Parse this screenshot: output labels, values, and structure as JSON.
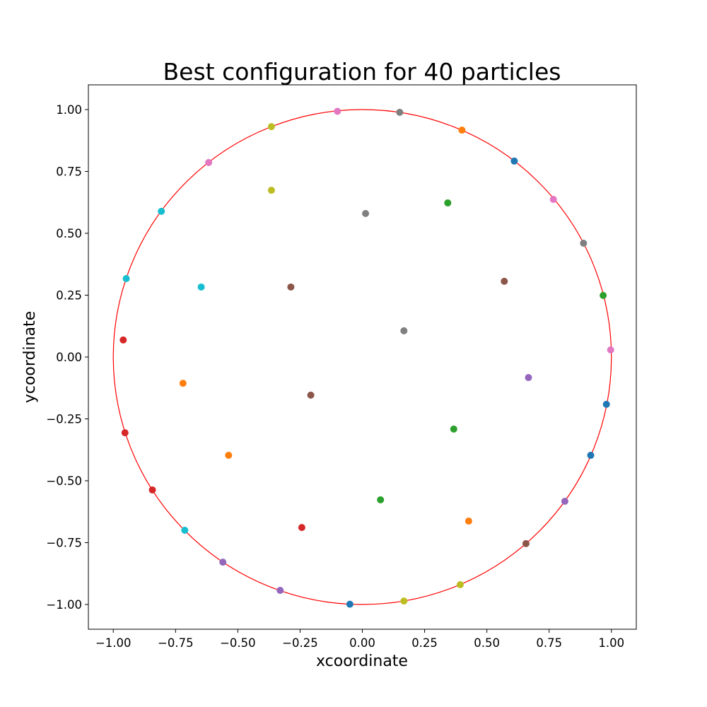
{
  "chart_data": {
    "type": "scatter",
    "title": "Best configuration for 40 particles",
    "xlabel": "xcoordinate",
    "ylabel": "ycoordinate",
    "xlim": [
      -1.1,
      1.1
    ],
    "ylim": [
      -1.1,
      1.1
    ],
    "x_ticks": [
      -1.0,
      -0.75,
      -0.5,
      -0.25,
      0.0,
      0.25,
      0.5,
      0.75,
      1.0
    ],
    "y_ticks": [
      -1.0,
      -0.75,
      -0.5,
      -0.25,
      0.0,
      0.25,
      0.5,
      0.75,
      1.0
    ],
    "x_tick_labels": [
      "−1.00",
      "−0.75",
      "−0.50",
      "−0.25",
      "0.00",
      "0.25",
      "0.50",
      "0.75",
      "1.00"
    ],
    "y_tick_labels": [
      "−1.00",
      "−0.75",
      "−0.50",
      "−0.25",
      "0.00",
      "0.25",
      "0.50",
      "0.75",
      "1.00"
    ],
    "grid": false,
    "circle": {
      "center": [
        0,
        0
      ],
      "radius": 1.0,
      "color": "#ff0000"
    },
    "points": [
      {
        "x": -0.1,
        "y": 0.993,
        "color": "#e377c2"
      },
      {
        "x": 0.15,
        "y": 0.989,
        "color": "#7f7f7f"
      },
      {
        "x": -0.365,
        "y": 0.931,
        "color": "#bcbd22"
      },
      {
        "x": 0.4,
        "y": 0.917,
        "color": "#ff7f0e"
      },
      {
        "x": 0.61,
        "y": 0.792,
        "color": "#1f77b4"
      },
      {
        "x": -0.617,
        "y": 0.786,
        "color": "#e377c2"
      },
      {
        "x": -0.365,
        "y": 0.674,
        "color": "#bcbd22"
      },
      {
        "x": 0.767,
        "y": 0.637,
        "color": "#e377c2"
      },
      {
        "x": 0.343,
        "y": 0.623,
        "color": "#2ca02c"
      },
      {
        "x": -0.807,
        "y": 0.589,
        "color": "#17becf"
      },
      {
        "x": 0.013,
        "y": 0.58,
        "color": "#7f7f7f"
      },
      {
        "x": 0.888,
        "y": 0.46,
        "color": "#7f7f7f"
      },
      {
        "x": -0.948,
        "y": 0.317,
        "color": "#17becf"
      },
      {
        "x": 0.57,
        "y": 0.306,
        "color": "#8c564b"
      },
      {
        "x": -0.647,
        "y": 0.283,
        "color": "#17becf"
      },
      {
        "x": -0.287,
        "y": 0.283,
        "color": "#8c564b"
      },
      {
        "x": 0.967,
        "y": 0.249,
        "color": "#2ca02c"
      },
      {
        "x": 0.167,
        "y": 0.106,
        "color": "#7f7f7f"
      },
      {
        "x": -0.96,
        "y": 0.069,
        "color": "#d62728"
      },
      {
        "x": 0.997,
        "y": 0.029,
        "color": "#e377c2"
      },
      {
        "x": 0.667,
        "y": -0.083,
        "color": "#9467bd"
      },
      {
        "x": -0.72,
        "y": -0.106,
        "color": "#ff7f0e"
      },
      {
        "x": -0.207,
        "y": -0.154,
        "color": "#8c564b"
      },
      {
        "x": 0.98,
        "y": -0.191,
        "color": "#1f77b4"
      },
      {
        "x": 0.367,
        "y": -0.291,
        "color": "#2ca02c"
      },
      {
        "x": -0.953,
        "y": -0.306,
        "color": "#d62728"
      },
      {
        "x": -0.537,
        "y": -0.397,
        "color": "#ff7f0e"
      },
      {
        "x": 0.917,
        "y": -0.397,
        "color": "#1f77b4"
      },
      {
        "x": -0.843,
        "y": -0.537,
        "color": "#d62728"
      },
      {
        "x": 0.073,
        "y": -0.577,
        "color": "#2ca02c"
      },
      {
        "x": 0.813,
        "y": -0.583,
        "color": "#9467bd"
      },
      {
        "x": 0.427,
        "y": -0.663,
        "color": "#ff7f0e"
      },
      {
        "x": -0.243,
        "y": -0.689,
        "color": "#d62728"
      },
      {
        "x": -0.713,
        "y": -0.7,
        "color": "#17becf"
      },
      {
        "x": 0.657,
        "y": -0.754,
        "color": "#8c564b"
      },
      {
        "x": -0.56,
        "y": -0.829,
        "color": "#9467bd"
      },
      {
        "x": 0.393,
        "y": -0.92,
        "color": "#bcbd22"
      },
      {
        "x": -0.33,
        "y": -0.943,
        "color": "#9467bd"
      },
      {
        "x": 0.167,
        "y": -0.986,
        "color": "#bcbd22"
      },
      {
        "x": -0.05,
        "y": -0.999,
        "color": "#1f77b4"
      }
    ]
  }
}
